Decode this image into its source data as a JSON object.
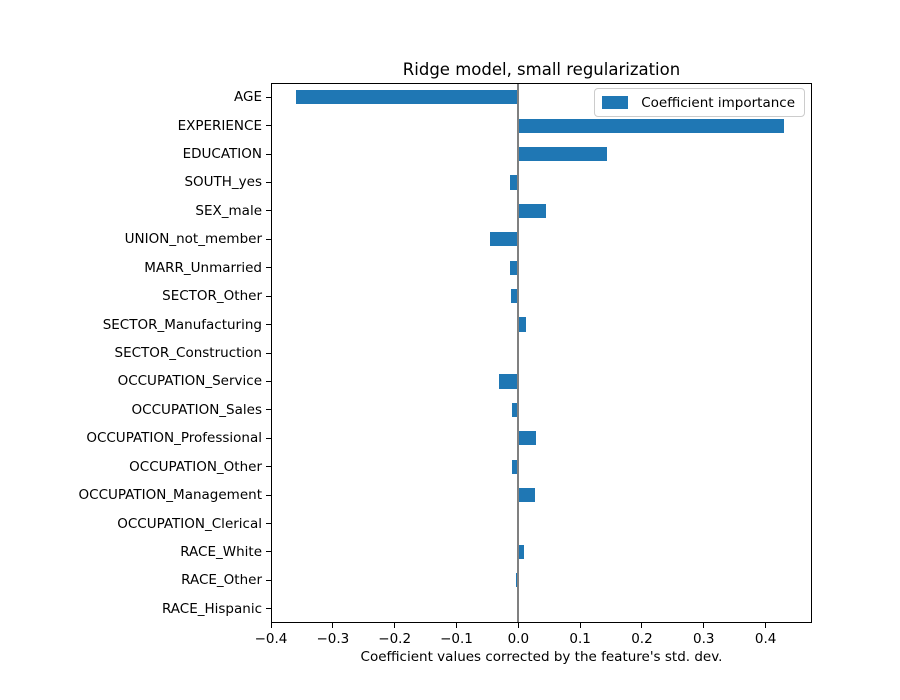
{
  "chart_data": {
    "type": "bar",
    "orientation": "horizontal",
    "title": "Ridge model, small regularization",
    "xlabel": "Coefficient values corrected by the feature's std. dev.",
    "legend": {
      "label": "Coefficient importance",
      "position": "upper right"
    },
    "bar_color": "#1f77b4",
    "zero_line_color": "#808080",
    "grid": false,
    "xlim": [
      -0.4,
      0.475
    ],
    "xticks": {
      "values": [
        -0.4,
        -0.3,
        -0.2,
        -0.1,
        0.0,
        0.1,
        0.2,
        0.3,
        0.4
      ],
      "labels": [
        "−0.4",
        "−0.3",
        "−0.2",
        "−0.1",
        "0.0",
        "0.1",
        "0.2",
        "0.3",
        "0.4"
      ]
    },
    "categories": [
      "AGE",
      "EXPERIENCE",
      "EDUCATION",
      "SOUTH_yes",
      "SEX_male",
      "UNION_not_member",
      "MARR_Unmarried",
      "SECTOR_Other",
      "SECTOR_Manufacturing",
      "SECTOR_Construction",
      "OCCUPATION_Service",
      "OCCUPATION_Sales",
      "OCCUPATION_Professional",
      "OCCUPATION_Other",
      "OCCUPATION_Management",
      "OCCUPATION_Clerical",
      "RACE_White",
      "RACE_Other",
      "RACE_Hispanic"
    ],
    "values": [
      -0.36,
      0.43,
      0.143,
      -0.013,
      0.044,
      -0.045,
      -0.013,
      -0.012,
      0.012,
      0.0,
      -0.031,
      -0.011,
      0.028,
      -0.011,
      0.027,
      0.0,
      0.009,
      -0.003,
      0.0
    ]
  }
}
